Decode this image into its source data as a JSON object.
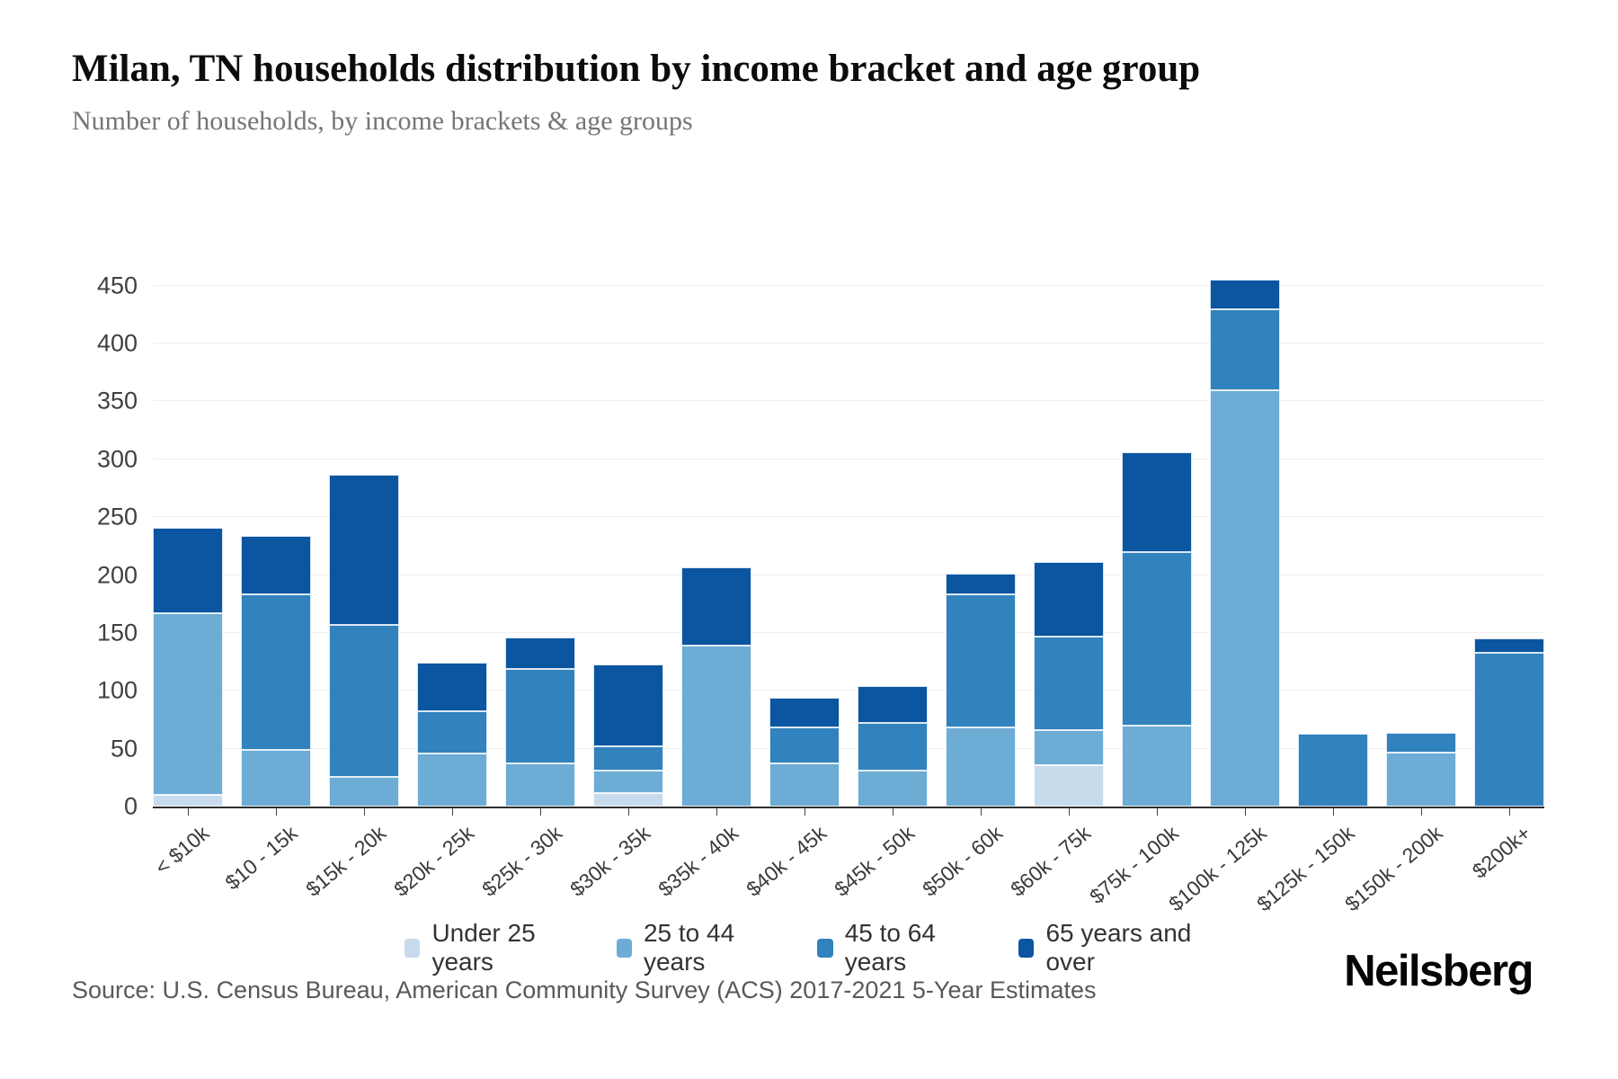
{
  "header": {
    "title": "Milan, TN households distribution by income bracket and age group",
    "subtitle": "Number of households, by income brackets & age groups"
  },
  "footer": {
    "source": "Source: U.S. Census Bureau, American Community Survey (ACS) 2017-2021 5-Year Estimates",
    "logo": "Neilsberg"
  },
  "chart_data": {
    "type": "bar",
    "stacked": true,
    "title": "Milan, TN households distribution by income bracket and age group",
    "subtitle": "Number of households, by income brackets & age groups",
    "xlabel": "",
    "ylabel": "Number of households",
    "ylim": [
      0,
      470
    ],
    "yticks": [
      0,
      50,
      100,
      150,
      200,
      250,
      300,
      350,
      400,
      450
    ],
    "grid": true,
    "legend_position": "bottom",
    "categories": [
      "< $10k",
      "$10 - 15k",
      "$15k - 20k",
      "$20k - 25k",
      "$25k - 30k",
      "$30k - 35k",
      "$35k - 40k",
      "$40k - 45k",
      "$45k - 50k",
      "$50k - 60k",
      "$60k - 75k",
      "$75k - 100k",
      "$100k - 125k",
      "$125k - 150k",
      "$150k - 200k",
      "$200k+"
    ],
    "series": [
      {
        "name": "Under 25 years",
        "color": "#c7dbed",
        "values": [
          10,
          0,
          0,
          0,
          0,
          12,
          0,
          0,
          0,
          0,
          36,
          0,
          0,
          0,
          0,
          0
        ]
      },
      {
        "name": "25 to 44 years",
        "color": "#6cacd5",
        "values": [
          157,
          49,
          26,
          46,
          37,
          19,
          139,
          37,
          31,
          68,
          30,
          70,
          360,
          0,
          47,
          0
        ]
      },
      {
        "name": "45 to 64 years",
        "color": "#3182bd",
        "values": [
          0,
          134,
          131,
          36,
          82,
          21,
          0,
          31,
          41,
          115,
          81,
          150,
          70,
          63,
          17,
          133
        ]
      },
      {
        "name": "65 years and over",
        "color": "#0b55a1",
        "values": [
          74,
          51,
          130,
          42,
          27,
          71,
          68,
          26,
          32,
          18,
          64,
          86,
          25,
          0,
          0,
          12
        ]
      }
    ],
    "totals": [
      241,
      234,
      287,
      124,
      146,
      123,
      207,
      94,
      104,
      201,
      211,
      306,
      455,
      63,
      64,
      145
    ],
    "colors": {
      "grid": "#efefef",
      "axis": "#2f2f2f",
      "tick_label": "#404040"
    }
  }
}
